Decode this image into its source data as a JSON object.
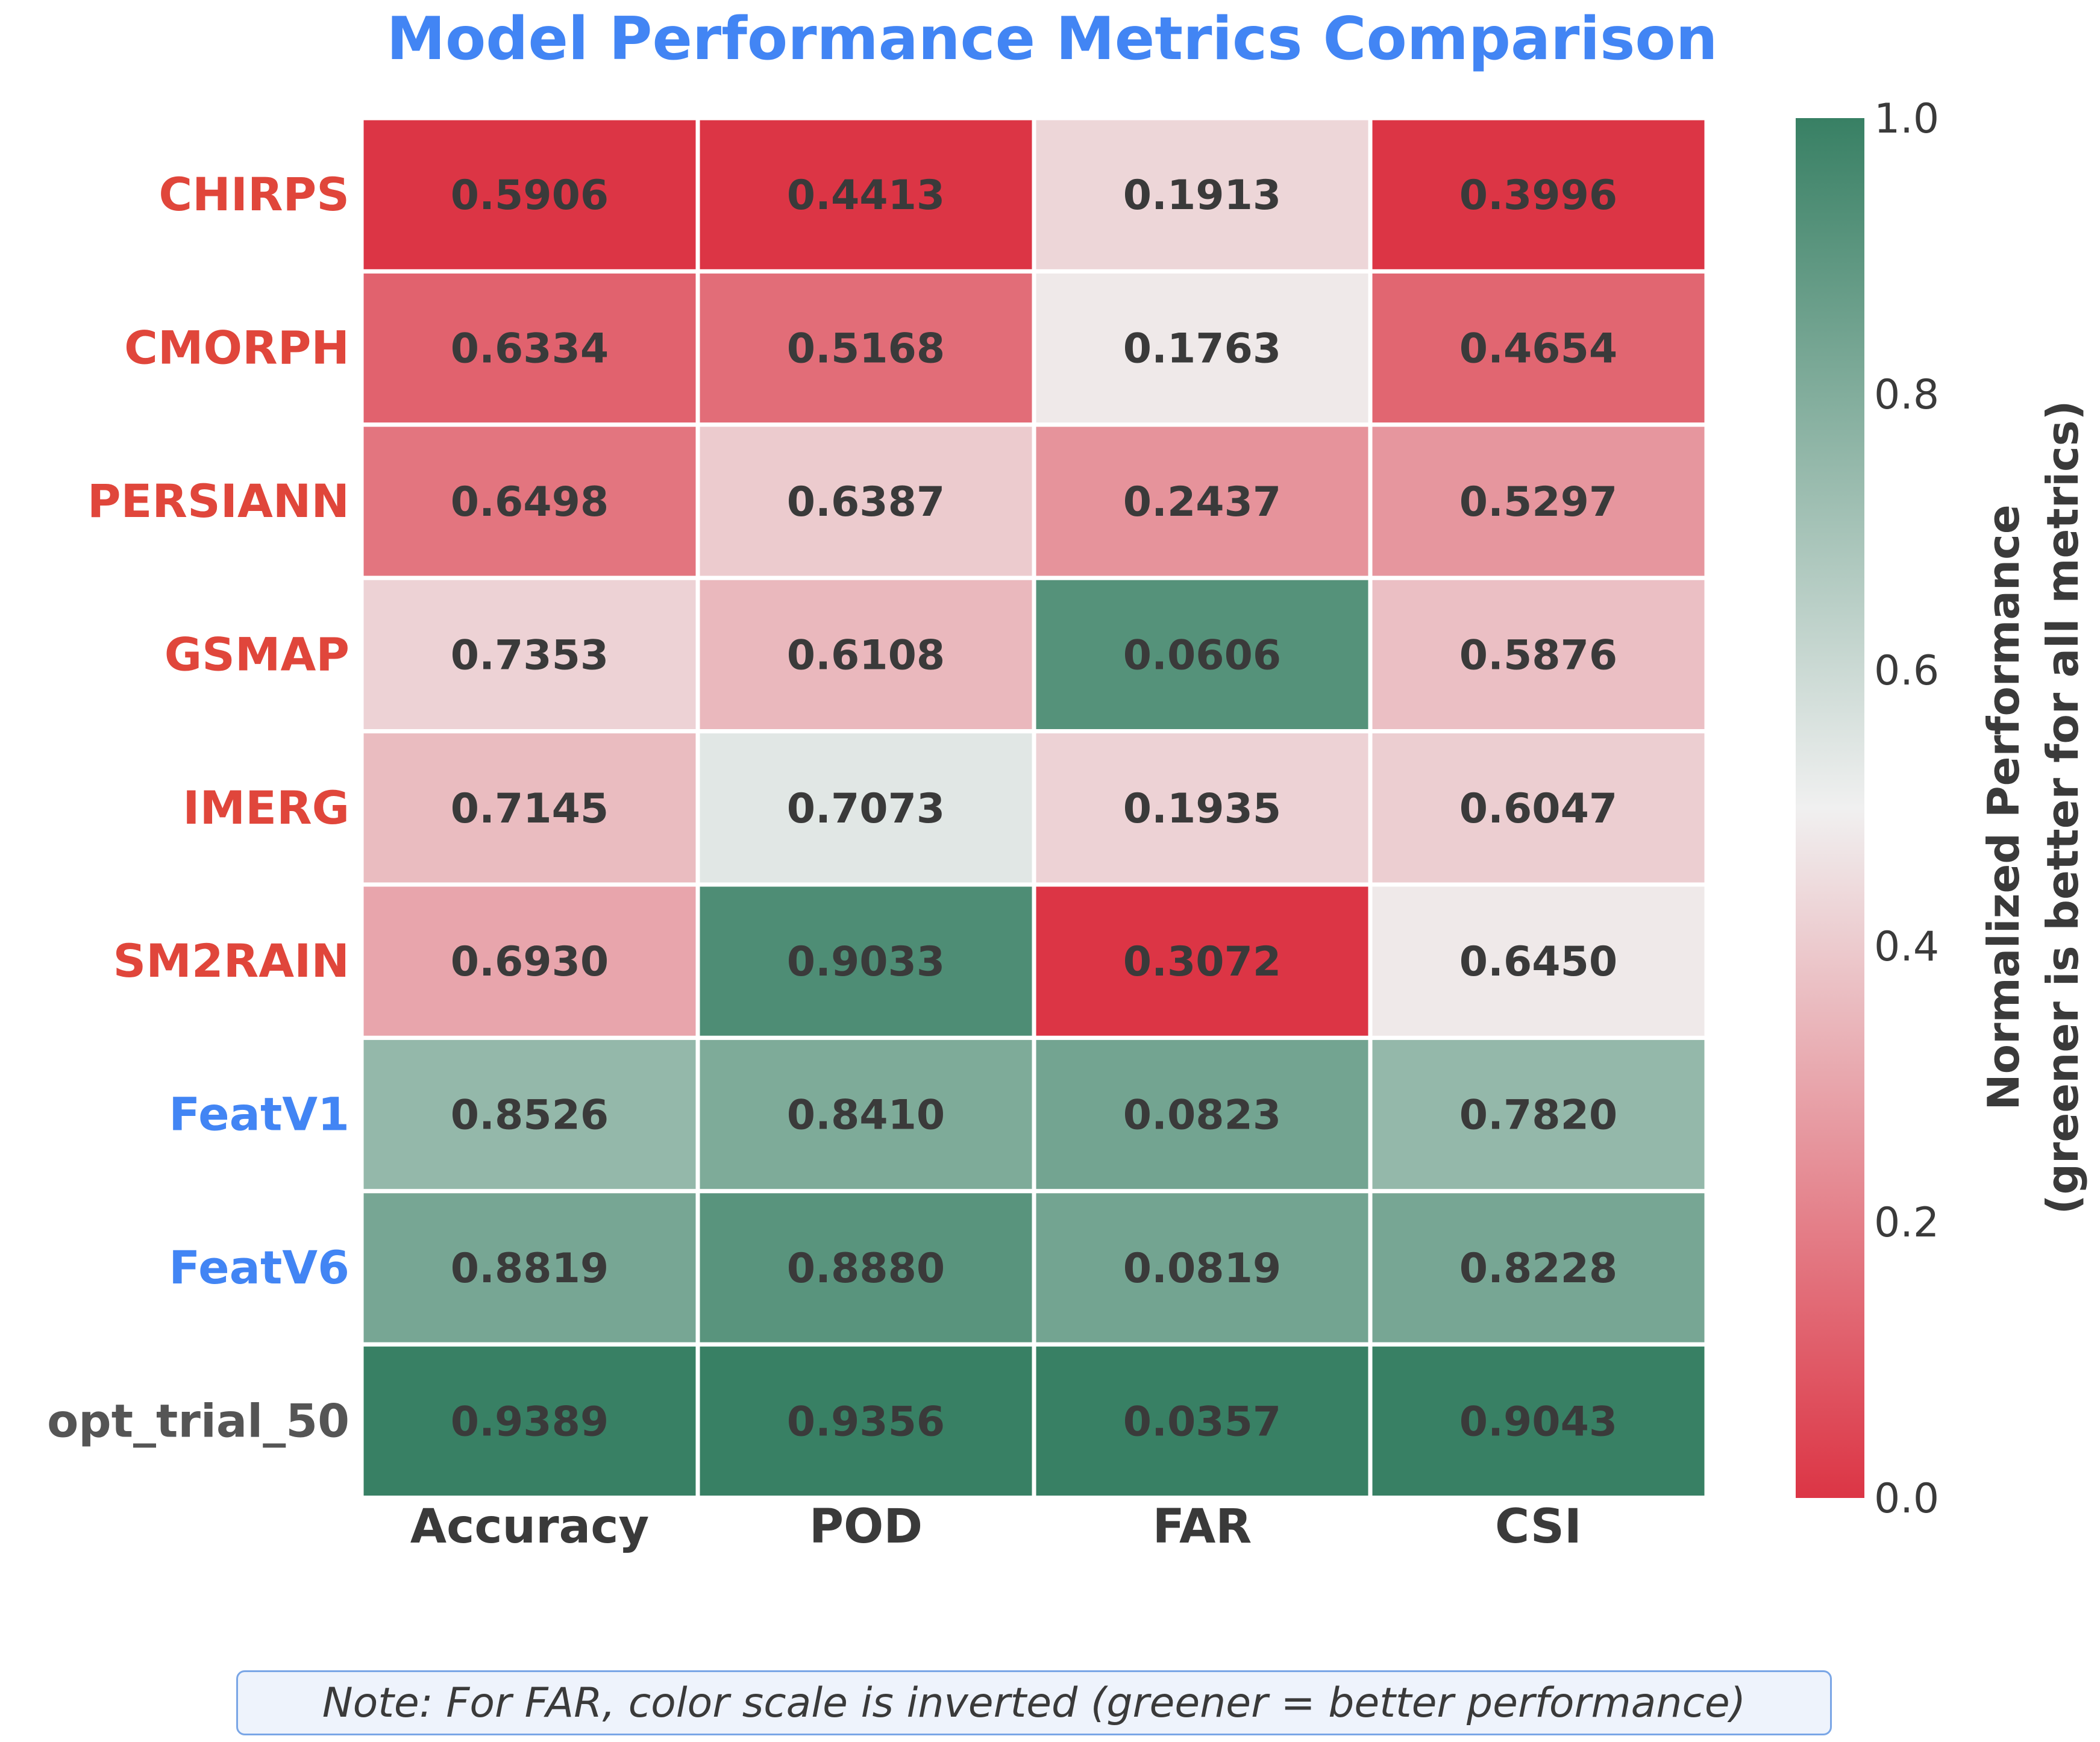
{
  "chart_data": {
    "type": "heatmap",
    "title": "Model Performance Metrics Comparison",
    "rows": [
      "CHIRPS",
      "CMORPH",
      "PERSIANN",
      "GSMAP",
      "IMERG",
      "SM2RAIN",
      "FeatV1",
      "FeatV6",
      "opt_trial_50"
    ],
    "row_label_colors": [
      "#e0463b",
      "#e0463b",
      "#e0463b",
      "#e0463b",
      "#e0463b",
      "#e0463b",
      "#4285f4",
      "#4285f4",
      "#555555"
    ],
    "columns": [
      "Accuracy",
      "POD",
      "FAR",
      "CSI"
    ],
    "cell_labels": [
      [
        "0.5906",
        "0.4413",
        "0.1913",
        "0.3996"
      ],
      [
        "0.6334",
        "0.5168",
        "0.1763",
        "0.4654"
      ],
      [
        "0.6498",
        "0.6387",
        "0.2437",
        "0.5297"
      ],
      [
        "0.7353",
        "0.6108",
        "0.0606",
        "0.5876"
      ],
      [
        "0.7145",
        "0.7073",
        "0.1935",
        "0.6047"
      ],
      [
        "0.6930",
        "0.9033",
        "0.3072",
        "0.6450"
      ],
      [
        "0.8526",
        "0.8410",
        "0.0823",
        "0.7820"
      ],
      [
        "0.8819",
        "0.8880",
        "0.0819",
        "0.8228"
      ],
      [
        "0.9389",
        "0.9356",
        "0.0357",
        "0.9043"
      ]
    ],
    "normalized": [
      [
        0.0,
        0.0,
        0.43,
        0.0
      ],
      [
        0.12,
        0.15,
        0.48,
        0.13
      ],
      [
        0.17,
        0.4,
        0.25,
        0.26
      ],
      [
        0.42,
        0.35,
        0.92,
        0.37
      ],
      [
        0.36,
        0.54,
        0.42,
        0.41
      ],
      [
        0.3,
        0.94,
        0.0,
        0.48
      ],
      [
        0.75,
        0.81,
        0.84,
        0.75
      ],
      [
        0.83,
        0.91,
        0.84,
        0.83
      ],
      [
        1.0,
        1.0,
        1.0,
        1.0
      ]
    ],
    "colormap": [
      "#dc3545",
      "#f0f0f0",
      "#388064"
    ],
    "colorbar": {
      "label_line1": "Normalized Performance",
      "label_line2": "(greener is better for all metrics)",
      "range": [
        0,
        1
      ],
      "ticks": [
        "0.0",
        "0.2",
        "0.4",
        "0.6",
        "0.8",
        "1.0"
      ]
    },
    "title_color": "#4285f4",
    "note": "Note: For FAR, color scale is inverted (greener = better performance)"
  }
}
